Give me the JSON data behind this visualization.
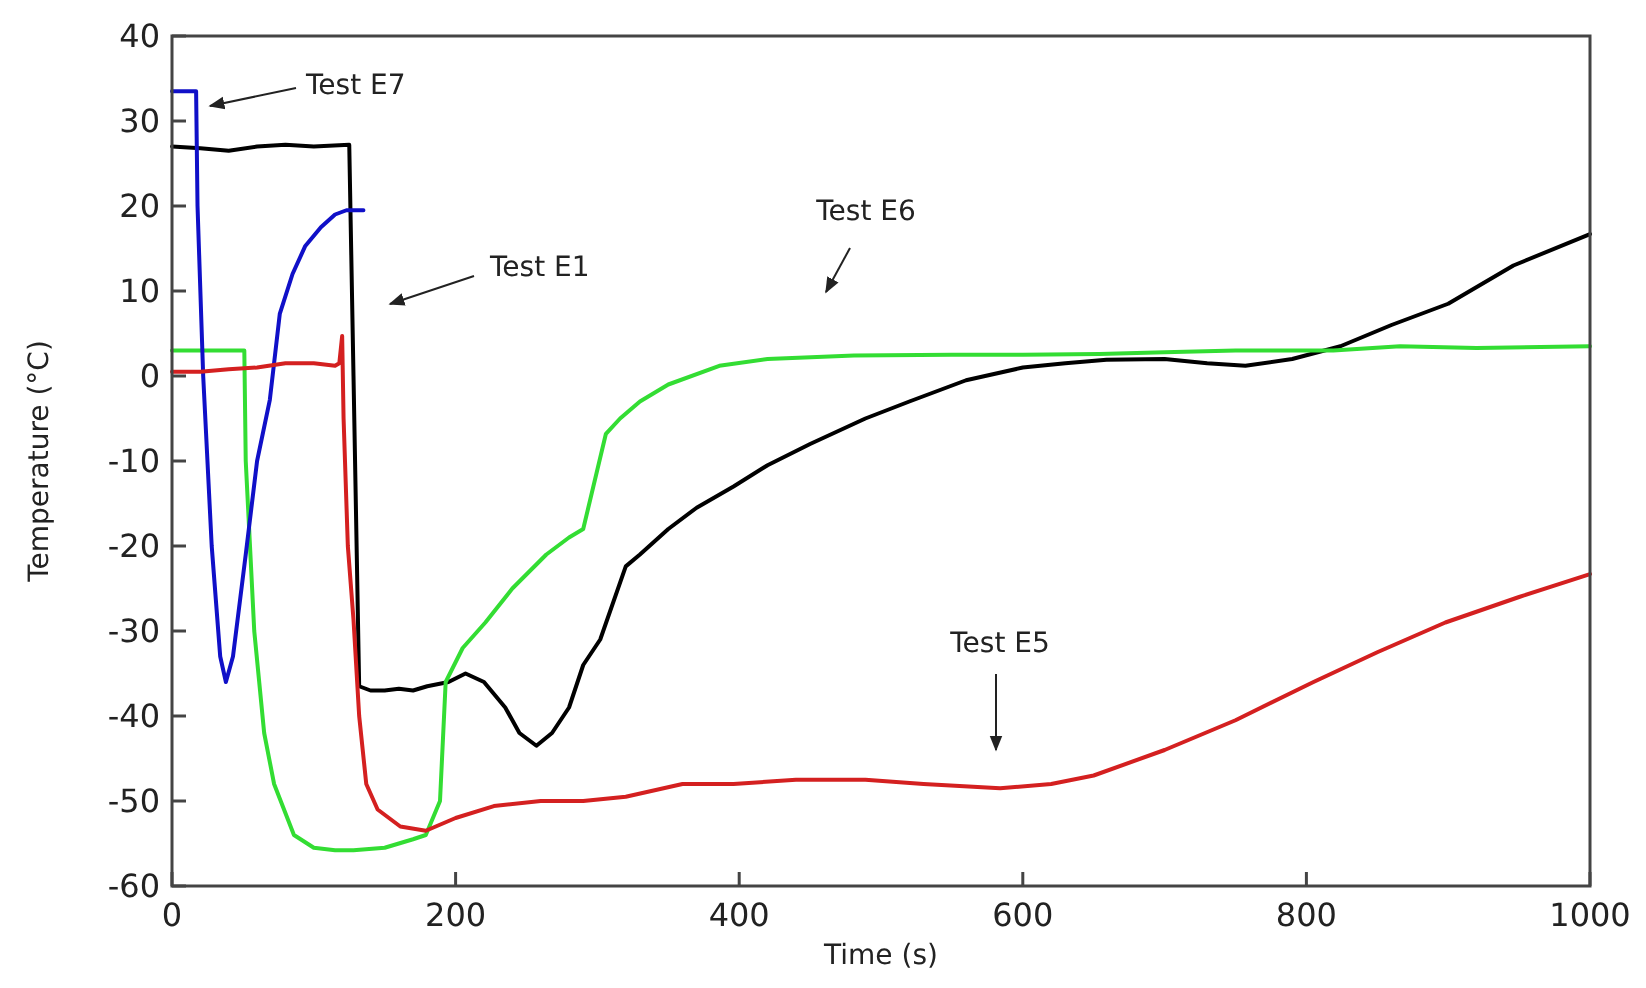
{
  "chart_data": {
    "type": "line",
    "xlabel": "Time (s)",
    "ylabel": "Temperature (°C)",
    "xlim": [
      0,
      1000
    ],
    "ylim": [
      -60,
      40
    ],
    "xticks": [
      0,
      200,
      400,
      600,
      800,
      1000
    ],
    "yticks": [
      -60,
      -50,
      -40,
      -30,
      -20,
      -10,
      0,
      10,
      20,
      30,
      40
    ],
    "grid": false,
    "marker": "none",
    "line_style": "solid",
    "annotations": [
      "Test E7",
      "Test E1",
      "Test E6",
      "Test E5"
    ],
    "series": [
      {
        "color": "#000000",
        "x": [
          0,
          20,
          40,
          60,
          80,
          100,
          125,
          128,
          132,
          140,
          150,
          160,
          170,
          180,
          195,
          207,
          220,
          235,
          245,
          257,
          268,
          280,
          290,
          302,
          320,
          330,
          350,
          370,
          396,
          420,
          450,
          489,
          520,
          560,
          600,
          630,
          659,
          700,
          730,
          757,
          790,
          824,
          860,
          900,
          946,
          1000
        ],
        "values": [
          27,
          26.8,
          26.5,
          27,
          27.2,
          27,
          27.2,
          0,
          -36.5,
          -37,
          -37,
          -36.8,
          -37,
          -36.5,
          -36,
          -35,
          -36,
          -39,
          -42,
          -43.5,
          -42,
          -39,
          -34,
          -31,
          -22.4,
          -21,
          -18,
          -15.5,
          -13,
          -10.5,
          -8,
          -5,
          -3,
          -0.5,
          1,
          1.5,
          1.9,
          2,
          1.5,
          1.2,
          2,
          3.5,
          6,
          8.5,
          13,
          16.7
        ]
      },
      {
        "color": "#33dd33",
        "x": [
          0,
          20,
          51,
          52,
          58,
          65,
          72,
          86,
          100,
          115,
          128,
          150,
          170,
          179,
          189,
          193,
          205,
          221,
          240,
          264,
          280,
          290,
          306,
          316,
          330,
          350,
          386,
          420,
          481,
          550,
          600,
          654,
          700,
          750,
          819,
          866,
          920,
          1000
        ],
        "values": [
          3,
          3,
          3,
          -10,
          -30,
          -42,
          -48,
          -54,
          -55.5,
          -55.8,
          -55.8,
          -55.5,
          -54.5,
          -54,
          -50,
          -36,
          -32,
          -29,
          -25,
          -21,
          -19,
          -18,
          -6.8,
          -5,
          -3,
          -1,
          1.2,
          2,
          2.4,
          2.5,
          2.5,
          2.6,
          2.8,
          3,
          3,
          3.5,
          3.3,
          3.5
        ]
      },
      {
        "color": "#1010c8",
        "x": [
          0,
          17,
          18,
          22,
          28,
          34,
          38,
          43,
          52,
          60,
          69,
          76,
          85,
          94,
          105,
          115,
          123,
          135
        ],
        "values": [
          33.5,
          33.5,
          20,
          0,
          -20,
          -33,
          -36,
          -33,
          -21,
          -10,
          -2.8,
          7.3,
          12,
          15.3,
          17.5,
          19,
          19.5,
          19.5
        ]
      },
      {
        "color": "#d42020",
        "x": [
          0,
          20,
          40,
          60,
          80,
          100,
          115,
          118,
          120,
          121,
          124,
          128,
          132,
          137,
          145,
          161,
          179,
          200,
          227,
          260,
          290,
          320,
          360,
          396,
          440,
          489,
          530,
          584,
          620,
          650,
          700,
          750,
          805,
          850,
          898,
          950,
          1000
        ],
        "values": [
          0.5,
          0.5,
          0.8,
          1,
          1.5,
          1.5,
          1.2,
          1.5,
          4.7,
          -5,
          -20,
          -28.7,
          -40,
          -48,
          -51,
          -53,
          -53.5,
          -52,
          -50.6,
          -50,
          -50,
          -49.5,
          -48,
          -48,
          -47.5,
          -47.5,
          -48,
          -48.5,
          -48,
          -47,
          -44,
          -40.5,
          -36,
          -32.5,
          -29,
          -26,
          -23.3
        ]
      }
    ]
  }
}
